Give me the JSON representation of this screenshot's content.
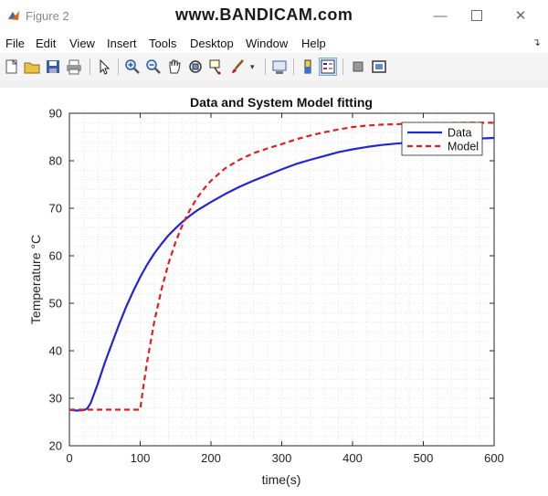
{
  "window": {
    "title": "Figure 2",
    "watermark": "www.BANDICAM.com"
  },
  "menu": {
    "items": [
      "File",
      "Edit",
      "View",
      "Insert",
      "Tools",
      "Desktop",
      "Window",
      "Help"
    ]
  },
  "toolbar": {
    "icons": [
      "new-figure-icon",
      "open-file-icon",
      "save-icon",
      "print-icon",
      "pointer-icon",
      "zoom-in-icon",
      "zoom-out-icon",
      "pan-icon",
      "rotate-3d-icon",
      "data-cursor-icon",
      "brush-icon",
      "brush-dropdown-icon",
      "link-plot-icon",
      "insert-colorbar-icon",
      "insert-legend-icon",
      "hide-plot-tools-icon",
      "show-plot-tools-icon"
    ]
  },
  "chart_data": {
    "type": "line",
    "title": "Data and System Model fitting",
    "xlabel": "time(s)",
    "ylabel": "Temperature °C",
    "xlim": [
      0,
      600
    ],
    "ylim": [
      20,
      90
    ],
    "xticks": [
      "0",
      "100",
      "200",
      "300",
      "400",
      "500",
      "600"
    ],
    "yticks": [
      "20",
      "30",
      "40",
      "50",
      "60",
      "70",
      "80",
      "90"
    ],
    "grid": "minor-dotted",
    "legend_position": "top-right",
    "series": [
      {
        "name": "Data",
        "color": "#2323d8",
        "style": "solid",
        "x": [
          0,
          10,
          20,
          25,
          30,
          40,
          50,
          60,
          70,
          80,
          90,
          100,
          110,
          120,
          130,
          140,
          150,
          160,
          170,
          180,
          200,
          220,
          240,
          260,
          280,
          300,
          320,
          340,
          360,
          380,
          400,
          420,
          440,
          460,
          480,
          500,
          520,
          540,
          560,
          580,
          600
        ],
        "y": [
          27.6,
          27.4,
          27.5,
          27.8,
          29.0,
          33.0,
          37.5,
          41.5,
          45.5,
          49.2,
          52.5,
          55.5,
          58.2,
          60.5,
          62.5,
          64.3,
          65.8,
          67.2,
          68.4,
          69.5,
          71.3,
          73.0,
          74.5,
          75.8,
          77.0,
          78.2,
          79.3,
          80.2,
          81.0,
          81.8,
          82.4,
          82.9,
          83.3,
          83.6,
          83.8,
          84.0,
          84.2,
          84.4,
          84.5,
          84.7,
          84.8
        ]
      },
      {
        "name": "Model",
        "color": "#e02020",
        "style": "dashed",
        "x": [
          0,
          100,
          105,
          110,
          120,
          130,
          140,
          150,
          160,
          170,
          180,
          190,
          200,
          220,
          240,
          260,
          280,
          300,
          320,
          340,
          360,
          380,
          400,
          420,
          440,
          460,
          480,
          500,
          520,
          540,
          560,
          580,
          600
        ],
        "y": [
          27.6,
          27.6,
          33.0,
          37.9,
          46.2,
          52.9,
          58.4,
          62.9,
          66.6,
          69.6,
          72.1,
          74.1,
          75.8,
          78.4,
          80.2,
          81.6,
          82.6,
          83.5,
          84.5,
          85.3,
          86.0,
          86.6,
          87.1,
          87.4,
          87.6,
          87.7,
          87.8,
          87.9,
          87.95,
          87.97,
          88.0,
          88.0,
          88.0
        ]
      }
    ]
  }
}
